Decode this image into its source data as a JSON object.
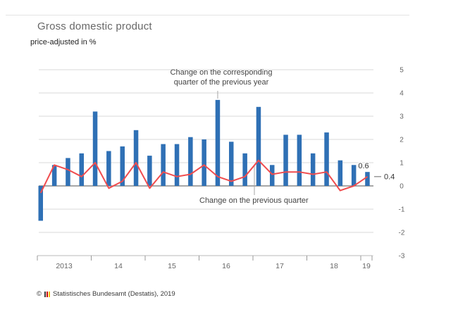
{
  "header": {
    "title": "Gross domestic product",
    "subtitle": "price-adjusted in %"
  },
  "chart_data": {
    "type": "bar",
    "title": "Gross domestic product",
    "subtitle": "price-adjusted in %",
    "categories": [
      "Q1 2013",
      "Q2 2013",
      "Q3 2013",
      "Q4 2013",
      "Q1 2014",
      "Q2 2014",
      "Q3 2014",
      "Q4 2014",
      "Q1 2015",
      "Q2 2015",
      "Q3 2015",
      "Q4 2015",
      "Q1 2016",
      "Q2 2016",
      "Q3 2016",
      "Q4 2016",
      "Q1 2017",
      "Q2 2017",
      "Q3 2017",
      "Q4 2017",
      "Q1 2018",
      "Q2 2018",
      "Q3 2018",
      "Q4 2018",
      "Q1 2019"
    ],
    "series": [
      {
        "name": "Change on the corresponding quarter of the previous year",
        "type": "bar",
        "color": "#2f70b5",
        "values": [
          -1.5,
          0.9,
          1.2,
          1.4,
          3.2,
          1.5,
          1.7,
          2.4,
          1.3,
          1.8,
          1.8,
          2.1,
          2.0,
          3.7,
          1.9,
          1.4,
          3.4,
          0.9,
          2.2,
          2.2,
          1.4,
          2.3,
          1.1,
          0.9,
          0.6
        ]
      },
      {
        "name": "Change on the previous quarter",
        "type": "line",
        "color": "#f04c4e",
        "values": [
          -0.3,
          0.9,
          0.7,
          0.4,
          1.0,
          -0.1,
          0.2,
          1.0,
          -0.1,
          0.6,
          0.4,
          0.5,
          0.9,
          0.4,
          0.2,
          0.4,
          1.1,
          0.5,
          0.6,
          0.6,
          0.5,
          0.6,
          -0.2,
          0.0,
          0.4
        ]
      }
    ],
    "ylim": [
      -3,
      5
    ],
    "yticks": [
      5,
      4,
      3,
      2,
      1,
      0,
      -1,
      -2,
      -3
    ],
    "grid": "on",
    "legend_position": "in-chart annotations",
    "x_axis_year_labels": [
      "2013",
      "14",
      "15",
      "16",
      "17",
      "18",
      "19"
    ],
    "annotations": [
      {
        "text": "Change on the corresponding quarter of the previous year",
        "target_category": "Q2 2016"
      },
      {
        "text": "Change on the previous quarter",
        "target_category": "Q1 2017"
      }
    ],
    "end_labels": {
      "bar": "0.6",
      "line": "0.4"
    }
  },
  "footer": {
    "copyright_symbol": "©",
    "source_text": "Statistisches Bundesamt (Destatis), 2019"
  }
}
